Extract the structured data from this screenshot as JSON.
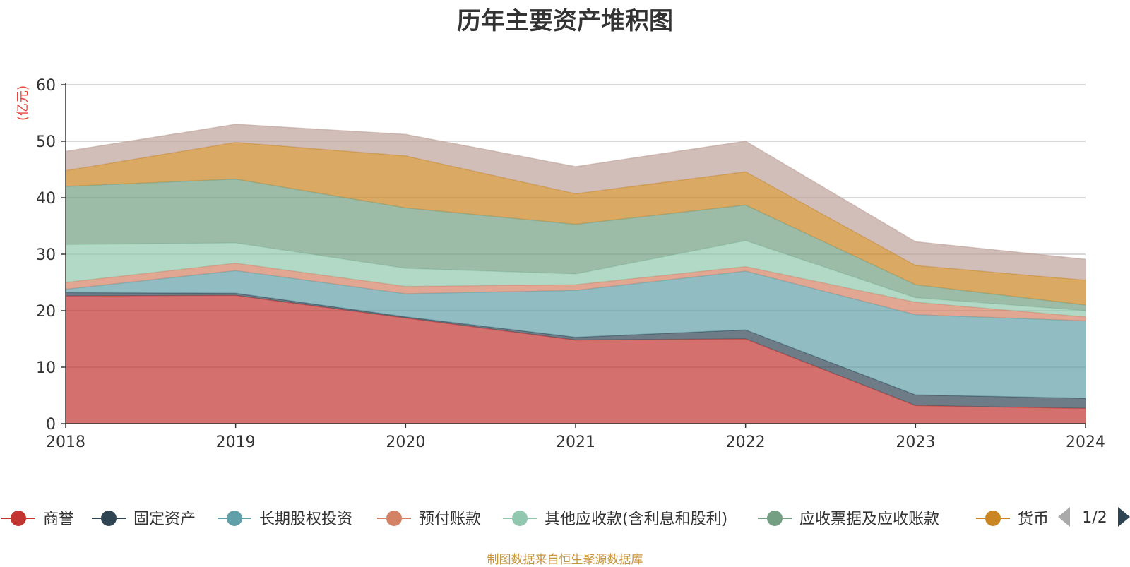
{
  "chart_data": {
    "type": "area",
    "stacked": true,
    "title": "历年主要资产堆积图",
    "y_unit": "(亿元)",
    "x": [
      "2018",
      "2019",
      "2020",
      "2021",
      "2022",
      "2023",
      "2024"
    ],
    "ylim": [
      0,
      60
    ],
    "yticks": [
      0,
      10,
      20,
      30,
      40,
      50,
      60
    ],
    "grid": true,
    "legend_placement": "bottom",
    "series": [
      {
        "name": "商誉",
        "color": "#c23531",
        "values": [
          22.6,
          22.7,
          18.7,
          14.8,
          15.0,
          3.2,
          2.7
        ]
      },
      {
        "name": "固定资产",
        "color": "#2f4554",
        "values": [
          0.6,
          0.4,
          0.2,
          0.5,
          1.6,
          1.9,
          1.8
        ]
      },
      {
        "name": "长期股权投资",
        "color": "#61a0a8",
        "values": [
          0.6,
          4.0,
          4.1,
          8.3,
          10.4,
          14.2,
          13.7
        ]
      },
      {
        "name": "预付账款",
        "color": "#d48265",
        "values": [
          1.2,
          1.3,
          1.3,
          1.0,
          0.8,
          2.2,
          0.7
        ]
      },
      {
        "name": "其他应收款(含利息和股利)",
        "color": "#91c7ae",
        "values": [
          6.7,
          3.6,
          3.2,
          1.9,
          4.6,
          0.8,
          1.1
        ]
      },
      {
        "name": "应收票据及应收账款",
        "color": "#749f83",
        "values": [
          10.3,
          11.3,
          10.7,
          8.8,
          6.3,
          2.3,
          1.0
        ]
      },
      {
        "name": "货币资金",
        "color": "#ca8622",
        "values": [
          2.8,
          6.5,
          9.2,
          5.4,
          5.9,
          3.4,
          4.4
        ]
      },
      {
        "name": "",
        "color": "#bda29a",
        "values": [
          3.4,
          3.2,
          3.8,
          4.8,
          5.4,
          4.2,
          3.7
        ]
      }
    ],
    "legend_visible": [
      "商誉",
      "固定资产",
      "长期股权投资",
      "预付账款",
      "其他应收款(含利息和股利)",
      "应收票据及应收账款",
      "货币资"
    ],
    "legend_page": "1/2"
  },
  "source_note": "制图数据来自恒生聚源数据库"
}
